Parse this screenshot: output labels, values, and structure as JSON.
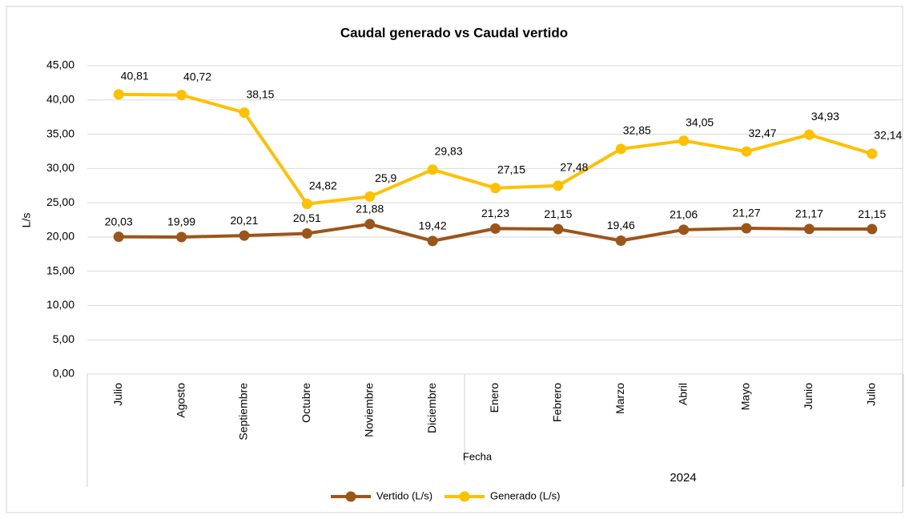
{
  "chart_data": {
    "type": "line",
    "title": "Caudal generado vs Caudal vertido",
    "y_label": "L/s",
    "x_label": "Fecha",
    "x_group_label": "2024",
    "categories": [
      "Julio",
      "Agosto",
      "Septiembre",
      "Octubre",
      "Noviembre",
      "Diciembre",
      "Enero",
      "Febrero",
      "Marzo",
      "Abril",
      "Mayo",
      "Junio",
      "Julio"
    ],
    "series": [
      {
        "name": "Vertido (L/s)",
        "color": "#9c5518",
        "values": [
          20.03,
          19.99,
          20.21,
          20.51,
          21.88,
          19.42,
          21.23,
          21.15,
          19.46,
          21.06,
          21.27,
          21.17,
          21.15
        ],
        "value_labels": [
          "20,03",
          "19,99",
          "20,21",
          "20,51",
          "21,88",
          "19,42",
          "21,23",
          "21,15",
          "19,46",
          "21,06",
          "21,27",
          "21,17",
          "21,15"
        ]
      },
      {
        "name": "Generado (L/s)",
        "color": "#ffc000",
        "values": [
          40.81,
          40.72,
          38.15,
          24.82,
          25.9,
          29.83,
          27.15,
          27.48,
          32.85,
          34.05,
          32.47,
          34.93,
          32.14
        ],
        "value_labels": [
          "40,81",
          "40,72",
          "38,15",
          "24,82",
          "25,9",
          "29,83",
          "27,15",
          "27,48",
          "32,85",
          "34,05",
          "32,47",
          "34,93",
          "32,14"
        ]
      }
    ],
    "ylim": [
      0,
      45
    ],
    "yticks": [
      {
        "value": 0,
        "label": "0,00"
      },
      {
        "value": 5,
        "label": "5,00"
      },
      {
        "value": 10,
        "label": "10,00"
      },
      {
        "value": 15,
        "label": "15,00"
      },
      {
        "value": 20,
        "label": "20,00"
      },
      {
        "value": 25,
        "label": "25,00"
      },
      {
        "value": 30,
        "label": "30,00"
      },
      {
        "value": 35,
        "label": "35,00"
      },
      {
        "value": 40,
        "label": "40,00"
      },
      {
        "value": 45,
        "label": "45,00"
      }
    ],
    "grid": true,
    "legend": "bottom"
  }
}
